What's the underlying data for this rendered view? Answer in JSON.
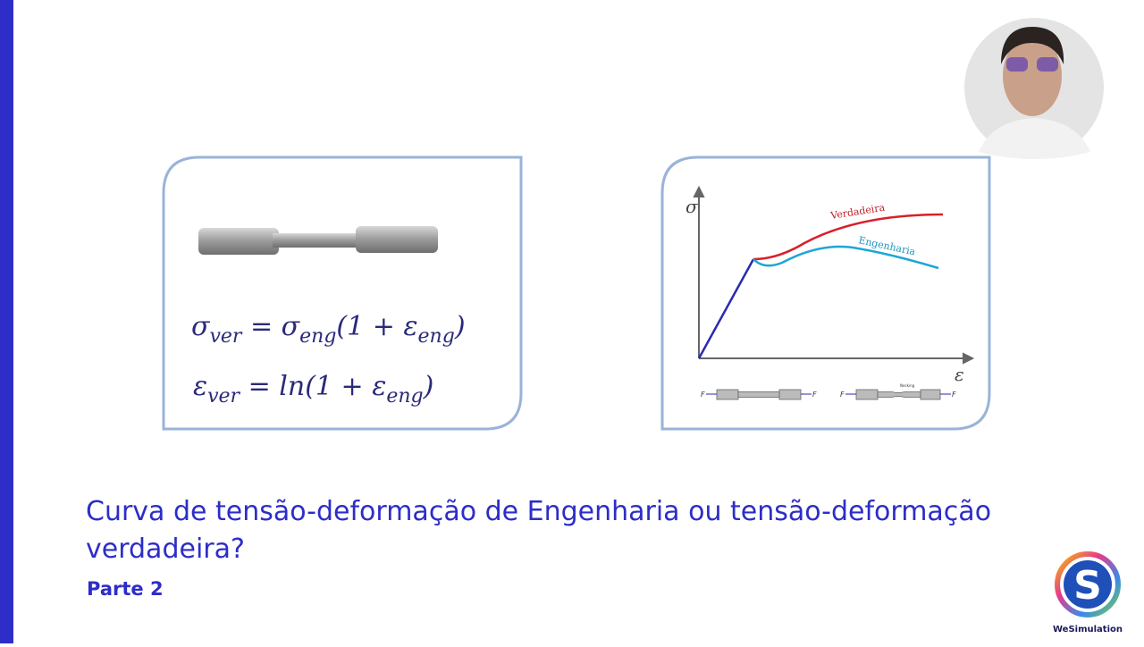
{
  "slide": {
    "title": "Curva de tensão-deformação de Engenharia ou tensão-deformação verdadeira?",
    "subtitle": "Parte 2",
    "logo_text": "WeSimulation",
    "logo_letter": "S",
    "formulas": [
      [
        "σ",
        "ver",
        " = σ",
        "eng",
        "(1 + ε",
        "eng",
        ")"
      ],
      [
        "ε",
        "ver",
        " = ln(1 + ε",
        "eng",
        ")"
      ]
    ],
    "diagram": {
      "y_axis_label": "σ",
      "x_axis_label": "ε",
      "curve_true_label": "Verdadeira",
      "curve_eng_label": "Engenharia",
      "force_labels": [
        "F",
        "F",
        "F",
        "F"
      ],
      "necking_label": "Necking"
    }
  }
}
